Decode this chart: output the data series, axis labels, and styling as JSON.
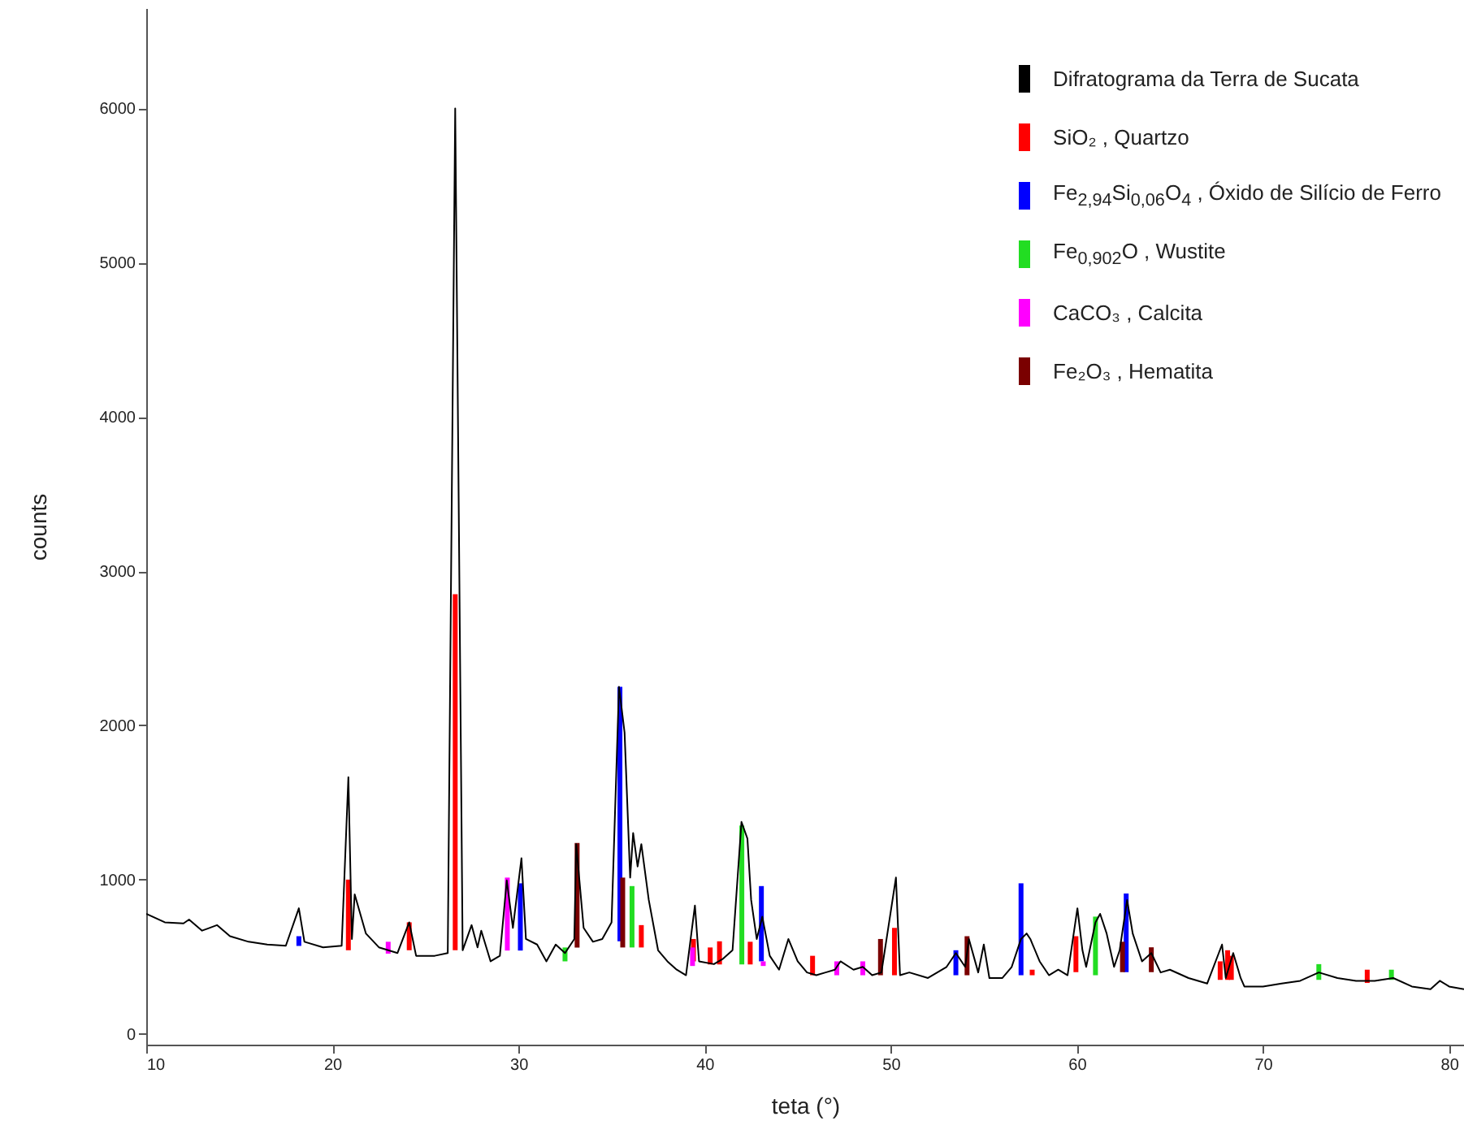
{
  "chart_data": {
    "type": "line",
    "xlabel": "teta (°)",
    "ylabel": "counts",
    "xlim": [
      10,
      80.8
    ],
    "ylim": [
      -70,
      6650
    ],
    "xticks": [
      10,
      20,
      30,
      40,
      50,
      60,
      70,
      80
    ],
    "yticks": [
      0,
      1000,
      2000,
      3000,
      4000,
      5000,
      6000
    ],
    "grid": false,
    "legend": "top right",
    "marker": "none",
    "line_style": "solid",
    "series": [
      {
        "name": "Difratograma da Terra de Sucata",
        "color": "#000000",
        "x": [
          10,
          11,
          12,
          12.3,
          13,
          13.8,
          14.5,
          15.5,
          16.5,
          17.5,
          18.2,
          18.5,
          19.5,
          20.5,
          20.86,
          21.05,
          21.2,
          21.8,
          22.5,
          23.5,
          24.13,
          24.5,
          25.5,
          26.2,
          26.6,
          27.0,
          27.48,
          27.8,
          28.0,
          28.5,
          29.0,
          29.37,
          29.7,
          30.16,
          30.4,
          31.0,
          31.5,
          32.0,
          32.5,
          33.0,
          33.1,
          33.5,
          34.0,
          34.5,
          35.0,
          35.4,
          35.7,
          36.0,
          36.16,
          36.4,
          36.6,
          37.0,
          37.5,
          38.0,
          38.5,
          39.0,
          39.48,
          39.7,
          40.5,
          41.0,
          41.5,
          41.98,
          42.3,
          42.5,
          42.8,
          43.1,
          43.5,
          44.0,
          44.5,
          45.0,
          45.5,
          46.0,
          46.5,
          47.0,
          47.3,
          48.0,
          48.5,
          49.0,
          49.5,
          50.28,
          50.5,
          51.0,
          52.0,
          53.0,
          53.5,
          54.0,
          54.2,
          54.7,
          55.0,
          55.3,
          56.0,
          56.5,
          57.0,
          57.3,
          57.5,
          58.0,
          58.5,
          59.0,
          59.5,
          60.03,
          60.3,
          60.5,
          61.0,
          61.25,
          61.6,
          62.0,
          62.3,
          62.7,
          63.0,
          63.5,
          64.0,
          64.5,
          65.0,
          66.0,
          67.0,
          67.8,
          68.0,
          68.4,
          68.8,
          69.0,
          70.0,
          71.0,
          72.0,
          73.0,
          74.0,
          75.0,
          76.0,
          77.0,
          78.0,
          79.0,
          79.5,
          80.0,
          80.8
        ],
        "values": [
          778,
          723,
          716,
          741,
          669,
          705,
          633,
          597,
          579,
          571,
          814,
          597,
          561,
          571,
          1664,
          615,
          904,
          651,
          561,
          524,
          723,
          506,
          506,
          524,
          6000,
          542,
          705,
          561,
          669,
          470,
          506,
          995,
          687,
          1139,
          615,
          579,
          470,
          579,
          524,
          615,
          1230,
          687,
          597,
          615,
          723,
          2250,
          1953,
          1013,
          1302,
          1085,
          1230,
          868,
          542,
          470,
          416,
          380,
          832,
          470,
          452,
          488,
          542,
          1374,
          1266,
          868,
          615,
          759,
          506,
          416,
          615,
          470,
          398,
          380,
          398,
          416,
          470,
          416,
          434,
          380,
          398,
          1013,
          380,
          398,
          362,
          434,
          524,
          434,
          615,
          398,
          579,
          362,
          362,
          434,
          615,
          651,
          615,
          470,
          380,
          416,
          380,
          814,
          542,
          434,
          723,
          778,
          651,
          434,
          542,
          868,
          651,
          470,
          524,
          398,
          416,
          362,
          326,
          579,
          362,
          524,
          362,
          307,
          307,
          326,
          344,
          398,
          362,
          344,
          344,
          362,
          307,
          289,
          344,
          307,
          289
        ]
      },
      {
        "name": "SiO₂ , Quartzo",
        "type": "bar",
        "color": "#ff0000",
        "x": [
          20.86,
          24.13,
          26.6,
          36.6,
          39.4,
          40.3,
          40.8,
          42.45,
          45.8,
          50.2,
          57.6,
          59.95,
          67.7,
          68.1,
          68.3,
          75.6
        ],
        "base": [
          542,
          542,
          542,
          560,
          470,
          450,
          450,
          450,
          380,
          380,
          380,
          400,
          350,
          350,
          350,
          330
        ],
        "values": [
          458,
          181,
          2308,
          145,
          145,
          110,
          150,
          147,
          126,
          307,
          36,
          233,
          120,
          192,
          156,
          86
        ]
      },
      {
        "name": "Fe$_{2,94}$Si$_{0,06}$O$_{4}$ , Óxido de Silício de Ferro",
        "type": "bar",
        "color": "#0000ff",
        "x": [
          18.2,
          30.1,
          35.45,
          43.05,
          53.5,
          57.0,
          62.65
        ],
        "base": [
          570,
          540,
          600,
          470,
          380,
          380,
          400
        ],
        "values": [
          63,
          436,
          1650,
          488,
          162,
          596,
          510
        ]
      },
      {
        "name": "Fe$_{0,902}$O , Wustite",
        "type": "bar",
        "color": "#22dd22",
        "x": [
          32.5,
          36.1,
          42.0,
          61.0,
          73.0,
          76.9
        ],
        "base": [
          470,
          560,
          450,
          380,
          350,
          350
        ],
        "values": [
          90,
          398,
          900,
          380,
          102,
          66
        ]
      },
      {
        "name": "CaCO₃ , Calcita",
        "type": "bar",
        "color": "#ff00ff",
        "x": [
          23.0,
          29.4,
          39.35,
          43.15,
          47.1,
          48.5
        ],
        "base": [
          520,
          540,
          440,
          440,
          380,
          380
        ],
        "values": [
          77,
          473,
          120,
          30,
          90,
          90
        ]
      },
      {
        "name": "Fe₂O₃ , Hematita",
        "type": "bar",
        "color": "#7a0000",
        "x": [
          33.15,
          35.6,
          49.45,
          54.1,
          62.45,
          64.0
        ],
        "base": [
          560,
          560,
          380,
          380,
          400,
          400
        ],
        "values": [
          677,
          453,
          235,
          253,
          197,
          161
        ]
      }
    ]
  }
}
